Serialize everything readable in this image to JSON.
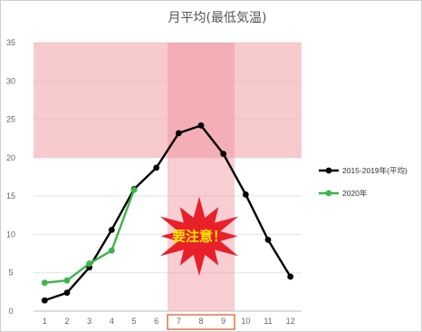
{
  "chart_data": {
    "type": "line",
    "title": "月平均(最低気温)",
    "categories": [
      "1",
      "2",
      "3",
      "4",
      "5",
      "6",
      "7",
      "8",
      "9",
      "10",
      "11",
      "12"
    ],
    "ylim": [
      0,
      35
    ],
    "yticks": [
      "0",
      "5",
      "10",
      "15",
      "20",
      "25",
      "30",
      "35"
    ],
    "series": [
      {
        "name": "2015-2019年(平均)",
        "color": "#000000",
        "values": [
          1.4,
          2.4,
          5.7,
          10.6,
          15.9,
          18.7,
          23.2,
          24.2,
          20.5,
          15.2,
          9.3,
          4.5
        ]
      },
      {
        "name": "2020年",
        "color": "#3cb44b",
        "values": [
          3.7,
          4.0,
          6.2,
          7.9,
          15.8,
          null,
          null,
          null,
          null,
          null,
          null,
          null
        ]
      }
    ],
    "highlight_band": {
      "y_range": [
        20,
        35
      ],
      "x_range": [
        "1",
        "12"
      ],
      "color": "#f4b6bb"
    },
    "highlight_months": {
      "x_range": [
        "7",
        "9"
      ],
      "color": "#f08a95"
    },
    "callout": "要注意！",
    "callout_color": "#e8202a",
    "grid": true,
    "legend_position": "right"
  }
}
